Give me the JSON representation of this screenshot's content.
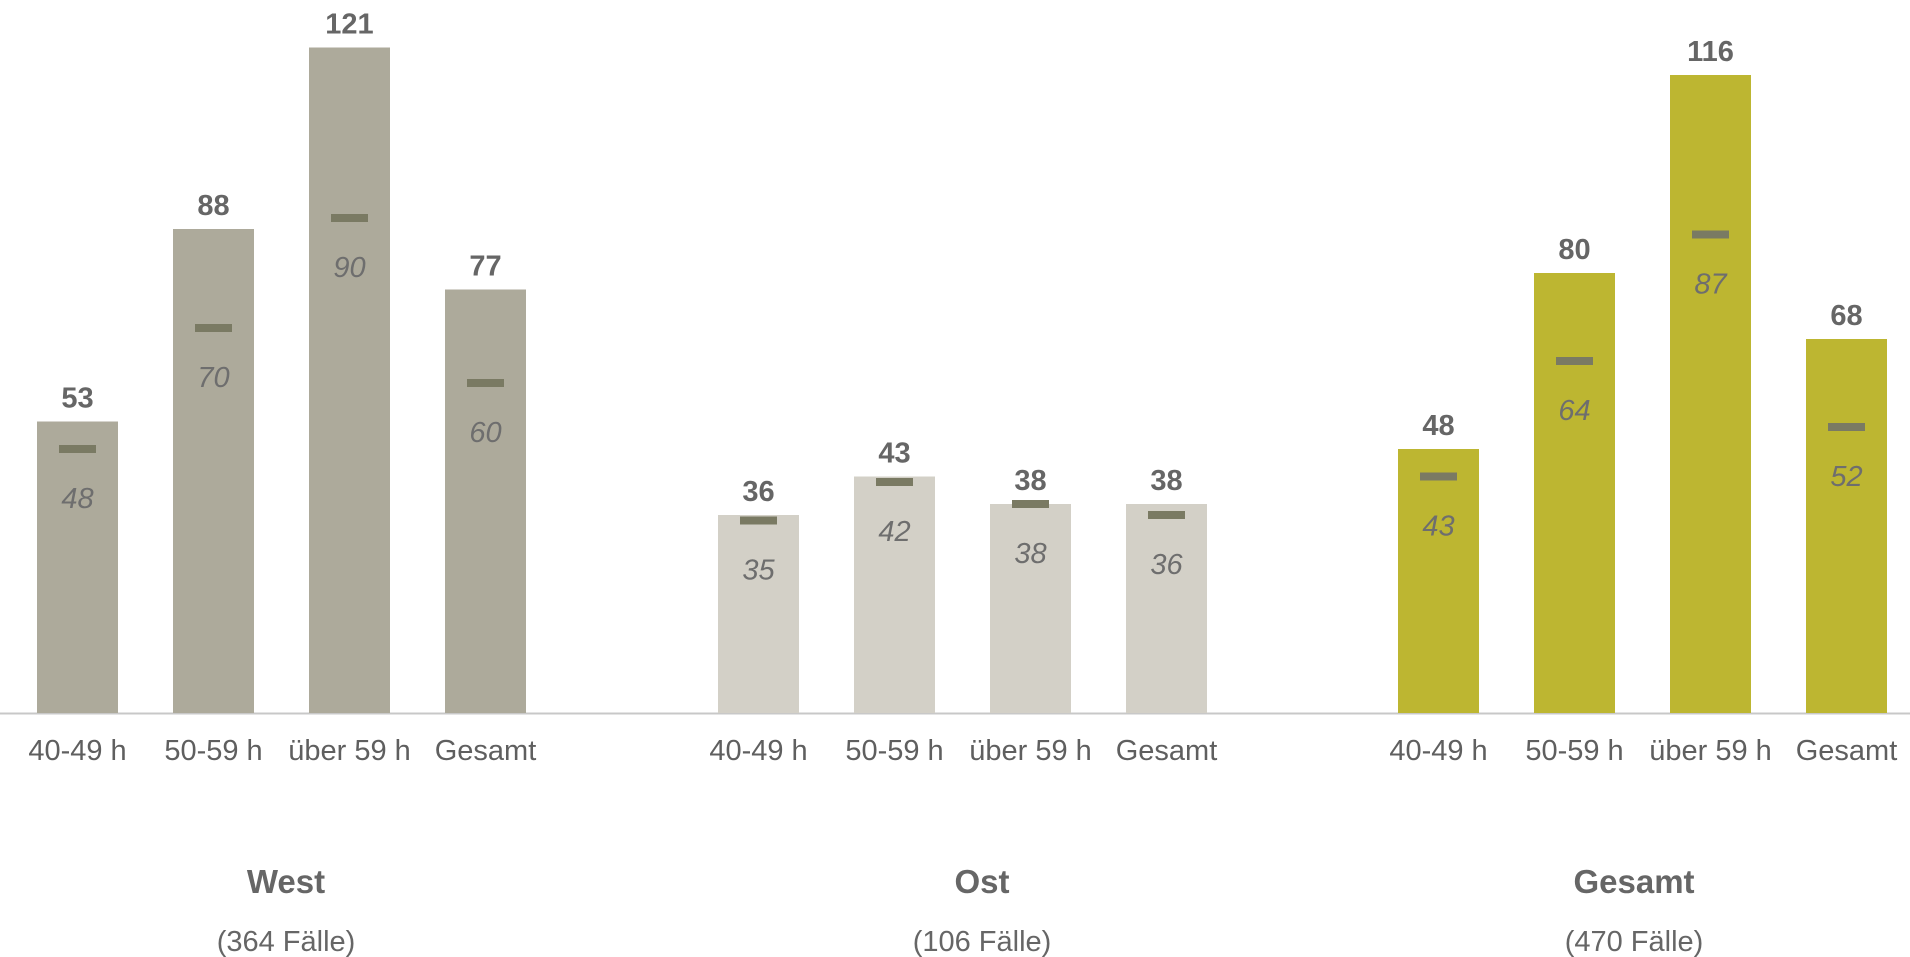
{
  "chart_data": {
    "type": "bar",
    "title": "",
    "xlabel": "",
    "ylabel": "",
    "ylim": [
      0,
      125
    ],
    "grid": false,
    "legend": "none",
    "categories": [
      "40-49 h",
      "50-59 h",
      "über 59 h",
      "Gesamt"
    ],
    "groups": [
      {
        "name": "West",
        "cases": "(364 Fälle)",
        "color": "#adaa9b",
        "values": [
          53,
          88,
          121,
          77
        ],
        "markers": [
          48,
          70,
          90,
          60
        ]
      },
      {
        "name": "Ost",
        "cases": "(106 Fälle)",
        "color": "#d3d0c7",
        "values": [
          36,
          43,
          38,
          38
        ],
        "markers": [
          35,
          42,
          38,
          36
        ]
      },
      {
        "name": "Gesamt",
        "cases": "(470 Fälle)",
        "color": "#bdb631",
        "values": [
          48,
          80,
          116,
          68
        ],
        "markers": [
          43,
          64,
          87,
          52
        ]
      }
    ],
    "marker_color": "#7a7a63",
    "axis_color": "#c8c8c8"
  }
}
